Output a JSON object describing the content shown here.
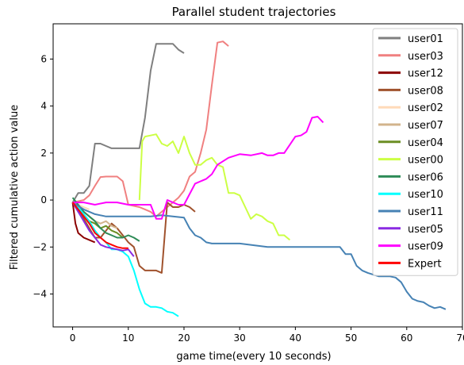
{
  "chart_data": {
    "type": "line",
    "title": "Parallel student trajectories",
    "xlabel": "game time(every 10 seconds)",
    "ylabel": "Filtered cumulative action value",
    "xlim": [
      -3.5,
      70
    ],
    "ylim": [
      -5.4,
      7.5
    ],
    "xticks": [
      0,
      10,
      20,
      30,
      40,
      50,
      60,
      70
    ],
    "yticks": [
      -4,
      -2,
      0,
      2,
      4,
      6
    ],
    "legend_position": "top-right",
    "grid": false,
    "series": [
      {
        "name": "user01",
        "color": "#7f7f7f",
        "x": [
          0,
          1,
          2,
          3,
          4,
          5,
          6,
          7,
          8,
          9,
          10,
          11,
          12,
          13,
          14,
          15,
          16,
          17,
          18,
          19,
          20
        ],
        "y": [
          -0.1,
          0.3,
          0.3,
          0.6,
          2.4,
          2.4,
          2.3,
          2.2,
          2.2,
          2.2,
          2.2,
          2.2,
          2.2,
          3.5,
          5.5,
          6.65,
          6.65,
          6.65,
          6.65,
          6.4,
          6.25
        ]
      },
      {
        "name": "user03",
        "color": "#f08080",
        "x": [
          0,
          2,
          3,
          4,
          5,
          6,
          7,
          8,
          9,
          10,
          12,
          13,
          14,
          15,
          16,
          17,
          18,
          19,
          20,
          21,
          22,
          23,
          24,
          25,
          26,
          27,
          28
        ],
        "y": [
          -0.1,
          0,
          0.2,
          0.6,
          0.98,
          1.0,
          1.0,
          1.0,
          0.8,
          -0.2,
          -0.3,
          -0.4,
          -0.5,
          -0.7,
          -0.5,
          -0.3,
          -0.1,
          0.1,
          0.4,
          1.0,
          1.2,
          2.0,
          3.0,
          4.9,
          6.7,
          6.75,
          6.55
        ]
      },
      {
        "name": "user12",
        "color": "#8b0000",
        "x": [
          0,
          0.5,
          1,
          2,
          3,
          4
        ],
        "y": [
          -0.1,
          -1.0,
          -1.4,
          -1.6,
          -1.7,
          -1.8
        ]
      },
      {
        "name": "user08",
        "color": "#a0522d",
        "x": [
          0,
          1,
          2,
          3,
          4,
          5,
          6,
          7,
          8,
          9,
          10,
          11,
          12,
          13,
          14,
          15,
          16,
          17,
          18,
          19,
          20,
          21,
          22
        ],
        "y": [
          -0.1,
          -0.5,
          -0.8,
          -1.2,
          -1.6,
          -1.6,
          -1.3,
          -1.0,
          -1.2,
          -1.5,
          -1.8,
          -2.0,
          -2.8,
          -3.0,
          -3.0,
          -3.0,
          -3.1,
          -0.1,
          -0.3,
          -0.3,
          -0.2,
          -0.3,
          -0.5
        ]
      },
      {
        "name": "user02",
        "color": "#ffdab9",
        "x": [
          0,
          1,
          2,
          3
        ],
        "y": [
          -0.1,
          -0.2,
          -0.3,
          -0.4
        ]
      },
      {
        "name": "user07",
        "color": "#d2b48c",
        "x": [
          0,
          1,
          2,
          3,
          4,
          5,
          6,
          7,
          8
        ],
        "y": [
          -0.1,
          -0.3,
          -0.5,
          -0.7,
          -0.9,
          -1.0,
          -0.9,
          -1.1,
          -1.2
        ]
      },
      {
        "name": "user04",
        "color": "#6b8e23",
        "x": [
          0,
          1,
          2,
          3,
          4,
          5,
          6,
          7,
          8,
          9
        ],
        "y": [
          -0.1,
          -0.4,
          -0.7,
          -0.9,
          -1.0,
          -1.2,
          -1.1,
          -1.3,
          -1.4,
          -1.6
        ]
      },
      {
        "name": "user00",
        "color": "#ccff44",
        "x": [
          12,
          12.5,
          13,
          14,
          15,
          16,
          17,
          18,
          19,
          20,
          21,
          22,
          23,
          24,
          25,
          26,
          27,
          28,
          29,
          30,
          31,
          32,
          33,
          34,
          35,
          36,
          37,
          38,
          39
        ],
        "y": [
          0,
          2.5,
          2.7,
          2.75,
          2.8,
          2.4,
          2.3,
          2.5,
          2.0,
          2.7,
          2.0,
          1.5,
          1.5,
          1.7,
          1.8,
          1.5,
          1.4,
          0.3,
          0.3,
          0.2,
          -0.3,
          -0.8,
          -0.6,
          -0.7,
          -0.9,
          -1.0,
          -1.5,
          -1.5,
          -1.7
        ]
      },
      {
        "name": "user06",
        "color": "#2e8b57",
        "x": [
          0,
          1,
          2,
          3,
          4,
          5,
          6,
          7,
          8,
          9,
          10,
          11,
          12
        ],
        "y": [
          0.1,
          -0.2,
          -0.5,
          -0.7,
          -0.9,
          -1.2,
          -1.4,
          -1.5,
          -1.6,
          -1.6,
          -1.5,
          -1.6,
          -1.75
        ]
      },
      {
        "name": "user10",
        "color": "#00ffff",
        "x": [
          0,
          1,
          2,
          3,
          4,
          5,
          6,
          7,
          8,
          9,
          10,
          11,
          12,
          13,
          14,
          15,
          16,
          17,
          18,
          19
        ],
        "y": [
          -0.1,
          -0.3,
          -0.6,
          -0.9,
          -1.3,
          -1.6,
          -1.8,
          -2.1,
          -2.1,
          -2.2,
          -2.4,
          -3.0,
          -3.8,
          -4.4,
          -4.55,
          -4.55,
          -4.6,
          -4.75,
          -4.8,
          -4.95
        ]
      },
      {
        "name": "user11",
        "color": "#4682b4",
        "x": [
          0,
          2,
          4,
          6,
          8,
          10,
          12,
          14,
          16,
          18,
          20,
          21,
          22,
          23,
          24,
          25,
          30,
          35,
          40,
          45,
          48,
          49,
          50,
          51,
          52,
          53,
          55,
          56,
          57,
          58,
          59,
          60,
          61,
          62,
          63,
          64,
          65,
          66,
          67
        ],
        "y": [
          -0.1,
          -0.4,
          -0.6,
          -0.7,
          -0.7,
          -0.7,
          -0.7,
          -0.7,
          -0.65,
          -0.7,
          -0.75,
          -1.2,
          -1.5,
          -1.6,
          -1.8,
          -1.85,
          -1.85,
          -2.0,
          -2.0,
          -2.0,
          -2.0,
          -2.3,
          -2.3,
          -2.8,
          -3.0,
          -3.1,
          -3.25,
          -3.25,
          -3.25,
          -3.3,
          -3.5,
          -3.9,
          -4.2,
          -4.3,
          -4.35,
          -4.5,
          -4.6,
          -4.55,
          -4.65
        ]
      },
      {
        "name": "user05",
        "color": "#8a2be2",
        "x": [
          0,
          1,
          2,
          3,
          4,
          5,
          6,
          7,
          8,
          9,
          10,
          11
        ],
        "y": [
          -0.1,
          -0.5,
          -0.9,
          -1.3,
          -1.6,
          -1.9,
          -2.0,
          -2.05,
          -2.1,
          -2.15,
          -2.1,
          -2.4
        ]
      },
      {
        "name": "user09",
        "color": "#ff00ff",
        "x": [
          0,
          2,
          4,
          6,
          8,
          10,
          12,
          14,
          15,
          16,
          17,
          18,
          19,
          20,
          22,
          24,
          25,
          26,
          28,
          30,
          32,
          34,
          35,
          36,
          37,
          38,
          40,
          41,
          42,
          43,
          44,
          45
        ],
        "y": [
          -0.1,
          -0.1,
          -0.2,
          -0.1,
          -0.1,
          -0.2,
          -0.2,
          -0.2,
          -0.8,
          -0.8,
          0.0,
          -0.1,
          -0.2,
          -0.2,
          0.7,
          0.9,
          1.1,
          1.5,
          1.8,
          1.95,
          1.9,
          2.0,
          1.9,
          1.9,
          2.0,
          2.0,
          2.7,
          2.75,
          2.9,
          3.5,
          3.55,
          3.3
        ]
      },
      {
        "name": "Expert",
        "color": "#ff0000",
        "x": [
          0,
          1,
          2,
          3,
          4,
          5,
          6,
          7,
          8,
          9,
          10
        ],
        "y": [
          -0.1,
          -0.4,
          -0.7,
          -1.0,
          -1.4,
          -1.6,
          -1.8,
          -1.9,
          -2.0,
          -2.05,
          -2.05
        ]
      }
    ]
  }
}
